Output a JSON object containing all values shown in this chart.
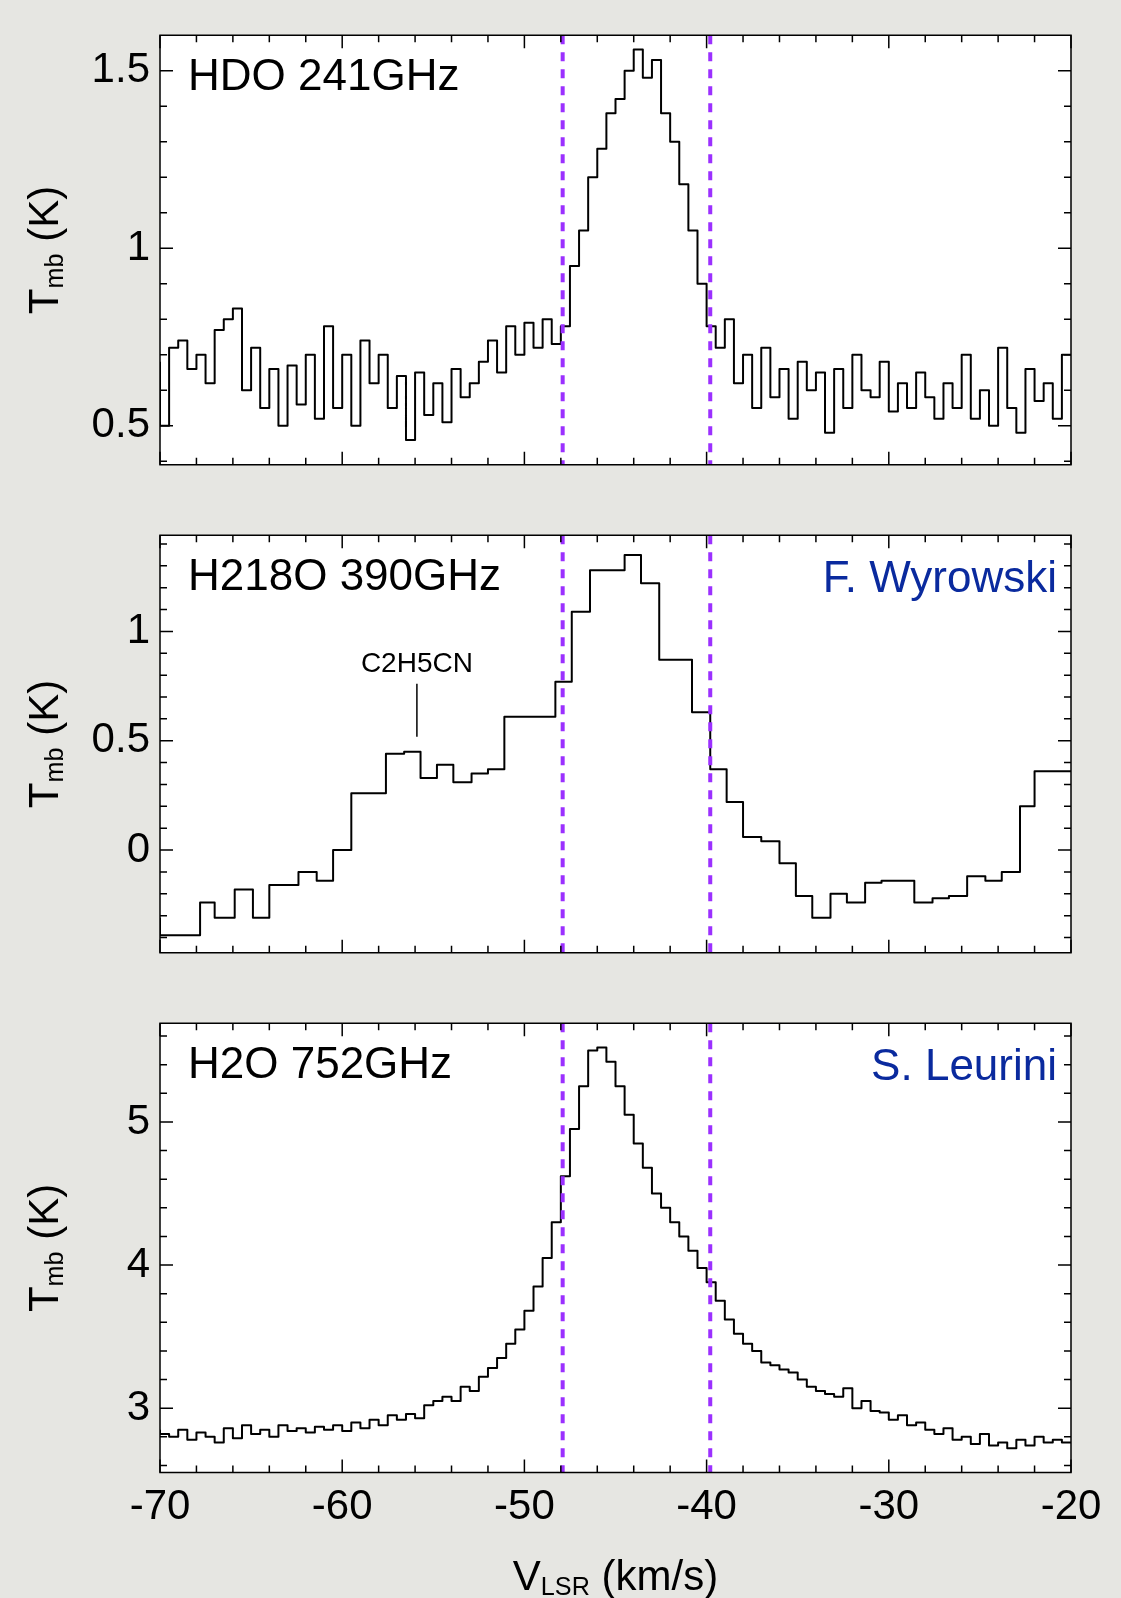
{
  "chart_data": [
    {
      "type": "step",
      "title": "HDO 241GHz",
      "ylabel": "T$_{mb}$ (K)",
      "color": "#000000",
      "line_style": "solid",
      "marker": "none",
      "tick_labels": "y",
      "x": [
        -70,
        -69.5,
        -69,
        -68.5,
        -68,
        -67.5,
        -67,
        -66.5,
        -66,
        -65.5,
        -65,
        -64.5,
        -64,
        -63.5,
        -63,
        -62.5,
        -62,
        -61.5,
        -61,
        -60.5,
        -60,
        -59.5,
        -59,
        -58.5,
        -58,
        -57.5,
        -57,
        -56.5,
        -56,
        -55.5,
        -55,
        -54.5,
        -54,
        -53.5,
        -53,
        -52.5,
        -52,
        -51.5,
        -51,
        -50.5,
        -50,
        -49.5,
        -49,
        -48.5,
        -48,
        -47.5,
        -47,
        -46.5,
        -46,
        -45.5,
        -45,
        -44.5,
        -44,
        -43.5,
        -43,
        -42.5,
        -42,
        -41.5,
        -41,
        -40.5,
        -40,
        -39.5,
        -39,
        -38.5,
        -38,
        -37.5,
        -37,
        -36.5,
        -36,
        -35.5,
        -35,
        -34.5,
        -34,
        -33.5,
        -33,
        -32.5,
        -32,
        -31.5,
        -31,
        -30.5,
        -30,
        -29.5,
        -29,
        -28.5,
        -28,
        -27.5,
        -27,
        -26.5,
        -26,
        -25.5,
        -25,
        -24.5,
        -24,
        -23.5,
        -23,
        -22.5,
        -22,
        -21.5,
        -21,
        -20.5,
        -20
      ],
      "values": [
        0.68,
        0.5,
        0.72,
        0.74,
        0.66,
        0.7,
        0.62,
        0.77,
        0.8,
        0.83,
        0.6,
        0.72,
        0.55,
        0.66,
        0.5,
        0.67,
        0.56,
        0.7,
        0.52,
        0.78,
        0.55,
        0.7,
        0.5,
        0.74,
        0.62,
        0.7,
        0.55,
        0.64,
        0.46,
        0.65,
        0.53,
        0.62,
        0.51,
        0.66,
        0.58,
        0.62,
        0.68,
        0.74,
        0.65,
        0.78,
        0.7,
        0.79,
        0.72,
        0.8,
        0.73,
        0.78,
        0.95,
        1.05,
        1.2,
        1.28,
        1.38,
        1.42,
        1.5,
        1.56,
        1.48,
        1.53,
        1.38,
        1.3,
        1.18,
        1.05,
        0.9,
        0.78,
        0.72,
        0.8,
        0.62,
        0.7,
        0.55,
        0.72,
        0.58,
        0.66,
        0.52,
        0.68,
        0.6,
        0.65,
        0.48,
        0.66,
        0.55,
        0.7,
        0.6,
        0.58,
        0.68,
        0.54,
        0.62,
        0.55,
        0.65,
        0.58,
        0.52,
        0.62,
        0.55,
        0.7,
        0.52,
        0.6,
        0.5,
        0.72,
        0.55,
        0.48,
        0.66,
        0.57,
        0.62,
        0.52,
        0.7
      ],
      "xlim": [
        -70,
        -20
      ],
      "ylim": [
        0.39,
        1.6
      ],
      "xticks": [
        -70,
        {
          "value": -68,
          "label": null
        },
        {
          "value": -66,
          "label": null
        },
        {
          "value": -64,
          "label": null
        },
        {
          "value": -62,
          "label": null
        },
        -60,
        {
          "value": -58,
          "label": null
        },
        {
          "value": -56,
          "label": null
        },
        {
          "value": -54,
          "label": null
        },
        {
          "value": -52,
          "label": null
        },
        -50,
        {
          "value": -48,
          "label": null
        },
        {
          "value": -46,
          "label": null
        },
        {
          "value": -44,
          "label": null
        },
        {
          "value": -42,
          "label": null
        },
        -40,
        {
          "value": -38,
          "label": null
        },
        {
          "value": -36,
          "label": null
        },
        {
          "value": -34,
          "label": null
        },
        {
          "value": -32,
          "label": null
        },
        -30,
        {
          "value": -28,
          "label": null
        },
        {
          "value": -26,
          "label": null
        },
        {
          "value": -24,
          "label": null
        },
        {
          "value": -22,
          "label": null
        },
        -20
      ],
      "yticks": [
        {
          "value": 0.4,
          "label": null
        },
        0.5,
        {
          "value": 0.6,
          "label": null
        },
        {
          "value": 0.7,
          "label": null
        },
        {
          "value": 0.8,
          "label": null
        },
        {
          "value": 0.9,
          "label": null
        },
        1,
        {
          "value": 1.1,
          "label": null
        },
        {
          "value": 1.2,
          "label": null
        },
        {
          "value": 1.3,
          "label": null
        },
        {
          "value": 1.4,
          "label": null
        },
        1.5
      ],
      "ref_lines": [
        {
          "axis": "x",
          "value": -47.9,
          "color": "#9b30ff",
          "line_style": "dashed"
        },
        {
          "axis": "x",
          "value": -39.8,
          "color": "#9b30ff",
          "line_style": "dashed"
        }
      ]
    },
    {
      "type": "step",
      "title": "H218O 390GHz",
      "ylabel": "T$_{mb}$ (K)",
      "color": "#000000",
      "line_style": "solid",
      "marker": "none",
      "tick_labels": "y",
      "annotations": [
        "F. Wyrowski",
        {
          "text": "C2H5CN",
          "x": -55.9,
          "y": 0.45
        }
      ],
      "x": [
        -70,
        -67.8,
        -67,
        -65.9,
        -64.9,
        -64,
        -62.4,
        -61.4,
        -60.5,
        -59.5,
        -58.5,
        -57.6,
        -56.6,
        -55.7,
        -54.8,
        -53.9,
        -52.9,
        -52,
        -51.1,
        -48.3,
        -47.4,
        -46.4,
        -44.5,
        -43.6,
        -42.6,
        -40.8,
        -39.8,
        -38.9,
        -38,
        -37,
        -36,
        -35.1,
        -34.2,
        -33.2,
        -32.3,
        -31.3,
        -30.4,
        -29.5,
        -28.6,
        -27.6,
        -26.7,
        -25.7,
        -24.7,
        -23.8,
        -22.8,
        -22,
        -21.1,
        -20
      ],
      "values": [
        -0.31,
        -0.39,
        -0.24,
        -0.31,
        -0.18,
        -0.31,
        -0.16,
        -0.1,
        -0.14,
        0,
        0.26,
        0.26,
        0.44,
        0.45,
        0.33,
        0.39,
        0.31,
        0.35,
        0.37,
        0.61,
        0.77,
        1.09,
        1.28,
        1.35,
        1.22,
        0.87,
        0.63,
        0.37,
        0.22,
        0.06,
        0.04,
        -0.06,
        -0.21,
        -0.31,
        -0.2,
        -0.24,
        -0.15,
        -0.14,
        -0.14,
        -0.24,
        -0.22,
        -0.21,
        -0.12,
        -0.14,
        -0.1,
        0.2,
        0.36,
        0.36
      ],
      "xlim": [
        -70,
        -20
      ],
      "ylim": [
        -0.47,
        1.44
      ],
      "xticks": [
        -70,
        {
          "value": -68,
          "label": null
        },
        {
          "value": -66,
          "label": null
        },
        {
          "value": -64,
          "label": null
        },
        {
          "value": -62,
          "label": null
        },
        -60,
        {
          "value": -58,
          "label": null
        },
        {
          "value": -56,
          "label": null
        },
        {
          "value": -54,
          "label": null
        },
        {
          "value": -52,
          "label": null
        },
        -50,
        {
          "value": -48,
          "label": null
        },
        {
          "value": -46,
          "label": null
        },
        {
          "value": -44,
          "label": null
        },
        {
          "value": -42,
          "label": null
        },
        -40,
        {
          "value": -38,
          "label": null
        },
        {
          "value": -36,
          "label": null
        },
        {
          "value": -34,
          "label": null
        },
        {
          "value": -32,
          "label": null
        },
        -30,
        {
          "value": -28,
          "label": null
        },
        {
          "value": -26,
          "label": null
        },
        {
          "value": -24,
          "label": null
        },
        {
          "value": -22,
          "label": null
        },
        -20
      ],
      "yticks": [
        {
          "value": -0.4,
          "label": null
        },
        {
          "value": -0.3,
          "label": null
        },
        {
          "value": -0.2,
          "label": null
        },
        {
          "value": -0.1,
          "label": null
        },
        0,
        {
          "value": 0.1,
          "label": null
        },
        {
          "value": 0.2,
          "label": null
        },
        {
          "value": 0.3,
          "label": null
        },
        {
          "value": 0.4,
          "label": null
        },
        0.5,
        {
          "value": 0.6,
          "label": null
        },
        {
          "value": 0.7,
          "label": null
        },
        {
          "value": 0.8,
          "label": null
        },
        {
          "value": 0.9,
          "label": null
        },
        1,
        {
          "value": 1.1,
          "label": null
        },
        {
          "value": 1.2,
          "label": null
        },
        {
          "value": 1.3,
          "label": null
        },
        {
          "value": 1.4,
          "label": null
        }
      ],
      "ref_lines": [
        {
          "axis": "x",
          "value": -47.9,
          "color": "#9b30ff",
          "line_style": "dashed"
        },
        {
          "axis": "x",
          "value": -39.8,
          "color": "#9b30ff",
          "line_style": "dashed"
        }
      ]
    },
    {
      "type": "step",
      "title": "H2O 752GHz",
      "xlabel": "V$_{LSR}$ (km/s)",
      "ylabel": "T$_{mb}$ (K)",
      "color": "#000000",
      "line_style": "solid",
      "marker": "none",
      "annotations": [
        "S. Leurini"
      ],
      "x": [
        -70,
        -69.5,
        -69,
        -68.5,
        -68,
        -67.5,
        -67,
        -66.5,
        -66,
        -65.5,
        -65,
        -64.5,
        -64,
        -63.5,
        -63,
        -62.5,
        -62,
        -61.5,
        -61,
        -60.5,
        -60,
        -59.5,
        -59,
        -58.5,
        -58,
        -57.5,
        -57,
        -56.5,
        -56,
        -55.5,
        -55,
        -54.5,
        -54,
        -53.5,
        -53,
        -52.5,
        -52,
        -51.5,
        -51,
        -50.5,
        -50,
        -49.5,
        -49,
        -48.5,
        -48,
        -47.5,
        -47,
        -46.5,
        -46,
        -45.5,
        -45,
        -44.5,
        -44,
        -43.5,
        -43,
        -42.5,
        -42,
        -41.5,
        -41,
        -40.5,
        -40,
        -39.5,
        -39,
        -38.5,
        -38,
        -37.5,
        -37,
        -36.5,
        -36,
        -35.5,
        -35,
        -34.5,
        -34,
        -33.5,
        -33,
        -32.5,
        -32,
        -31.5,
        -31,
        -30.5,
        -30,
        -29.5,
        -29,
        -28.5,
        -28,
        -27.5,
        -27,
        -26.5,
        -26,
        -25.5,
        -25,
        -24.5,
        -24,
        -23.5,
        -23,
        -22.5,
        -22,
        -21.5,
        -21,
        -20.5,
        -20
      ],
      "values": [
        2.85,
        2.82,
        2.8,
        2.85,
        2.78,
        2.83,
        2.8,
        2.76,
        2.86,
        2.79,
        2.88,
        2.82,
        2.85,
        2.8,
        2.88,
        2.84,
        2.86,
        2.83,
        2.87,
        2.85,
        2.88,
        2.84,
        2.9,
        2.86,
        2.92,
        2.88,
        2.95,
        2.92,
        2.96,
        2.93,
        3.02,
        3.05,
        3.08,
        3.05,
        3.15,
        3.12,
        3.22,
        3.28,
        3.35,
        3.45,
        3.55,
        3.68,
        3.85,
        4.05,
        4.3,
        4.62,
        4.95,
        5.25,
        5.5,
        5.52,
        5.42,
        5.25,
        5.05,
        4.85,
        4.68,
        4.5,
        4.4,
        4.3,
        4.2,
        4.1,
        3.98,
        3.88,
        3.75,
        3.62,
        3.52,
        3.45,
        3.4,
        3.32,
        3.3,
        3.27,
        3.25,
        3.2,
        3.15,
        3.12,
        3.1,
        3.08,
        3.14,
        3,
        3.05,
        2.98,
        2.97,
        2.92,
        2.95,
        2.88,
        2.9,
        2.85,
        2.82,
        2.86,
        2.78,
        2.8,
        2.75,
        2.82,
        2.74,
        2.76,
        2.72,
        2.78,
        2.74,
        2.8,
        2.76,
        2.78,
        2.76
      ],
      "xlim": [
        -70,
        -20
      ],
      "ylim": [
        2.55,
        5.69
      ],
      "xticks": [
        -70,
        {
          "value": -68,
          "label": null
        },
        {
          "value": -66,
          "label": null
        },
        {
          "value": -64,
          "label": null
        },
        {
          "value": -62,
          "label": null
        },
        -60,
        {
          "value": -58,
          "label": null
        },
        {
          "value": -56,
          "label": null
        },
        {
          "value": -54,
          "label": null
        },
        {
          "value": -52,
          "label": null
        },
        -50,
        {
          "value": -48,
          "label": null
        },
        {
          "value": -46,
          "label": null
        },
        {
          "value": -44,
          "label": null
        },
        {
          "value": -42,
          "label": null
        },
        -40,
        {
          "value": -38,
          "label": null
        },
        {
          "value": -36,
          "label": null
        },
        {
          "value": -34,
          "label": null
        },
        {
          "value": -32,
          "label": null
        },
        -30,
        {
          "value": -28,
          "label": null
        },
        {
          "value": -26,
          "label": null
        },
        {
          "value": -24,
          "label": null
        },
        {
          "value": -22,
          "label": null
        },
        -20
      ],
      "yticks": [
        {
          "value": 2.6,
          "label": null
        },
        {
          "value": 2.8,
          "label": null
        },
        3,
        {
          "value": 3.2,
          "label": null
        },
        {
          "value": 3.4,
          "label": null
        },
        {
          "value": 3.6,
          "label": null
        },
        {
          "value": 3.8,
          "label": null
        },
        4,
        {
          "value": 4.2,
          "label": null
        },
        {
          "value": 4.4,
          "label": null
        },
        {
          "value": 4.6,
          "label": null
        },
        {
          "value": 4.8,
          "label": null
        },
        5,
        {
          "value": 5.2,
          "label": null
        },
        {
          "value": 5.4,
          "label": null
        },
        {
          "value": 5.6,
          "label": null
        }
      ],
      "ref_lines": [
        {
          "axis": "x",
          "value": -47.9,
          "color": "#9b30ff",
          "line_style": "dashed"
        },
        {
          "axis": "x",
          "value": -39.8,
          "color": "#9b30ff",
          "line_style": "dashed"
        }
      ]
    }
  ]
}
